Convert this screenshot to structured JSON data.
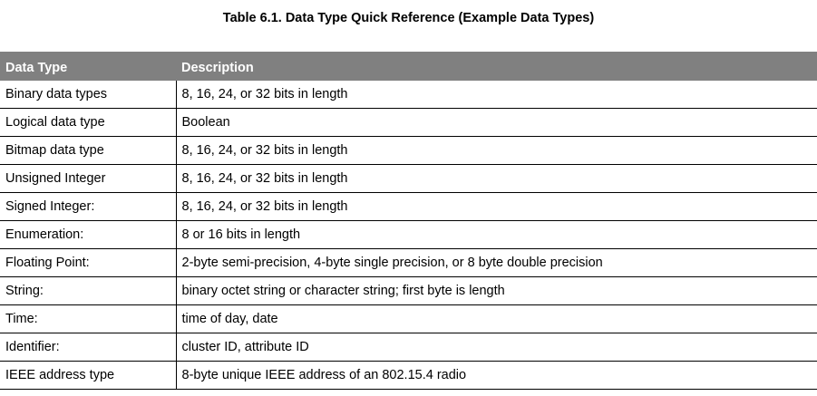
{
  "caption": "Table 6.1.  Data Type Quick Reference (Example Data Types)",
  "headers": [
    "Data Type",
    "Description"
  ],
  "rows": [
    [
      "Binary data types",
      "8, 16, 24, or 32 bits in length"
    ],
    [
      "Logical data type",
      "Boolean"
    ],
    [
      "Bitmap data type",
      "8, 16, 24, or 32 bits in length"
    ],
    [
      "Unsigned Integer",
      "8, 16, 24, or 32 bits in length"
    ],
    [
      "Signed Integer:",
      "8, 16, 24, or 32 bits in length"
    ],
    [
      "Enumeration:",
      "8 or 16 bits in length"
    ],
    [
      "Floating Point:",
      "2-byte semi-precision, 4-byte single precision, or 8 byte double precision"
    ],
    [
      "String:",
      "binary octet string or character string; first byte is length"
    ],
    [
      "Time:",
      "time of day, date"
    ],
    [
      "Identifier:",
      "cluster ID, attribute ID"
    ],
    [
      "IEEE address type",
      "8-byte unique IEEE address of an 802.15.4 radio"
    ]
  ],
  "colors": {
    "header_bg": "#808080",
    "header_text": "#ffffff",
    "rule": "#000000"
  }
}
